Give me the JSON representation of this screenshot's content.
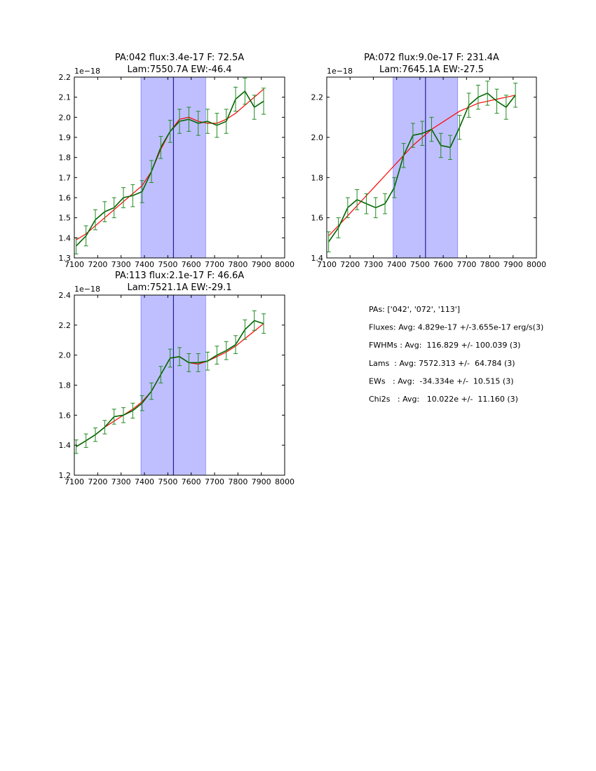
{
  "chart_data": [
    {
      "type": "line",
      "title": [
        "PA:042 flux:3.4e-17 F: 72.5A",
        "Lam:7550.7A EW:-46.4"
      ],
      "offset_text": "1e−18",
      "xlim": [
        7100,
        8000
      ],
      "ylim": [
        1.3,
        2.2
      ],
      "xticks": [
        "7100",
        "7200",
        "7300",
        "7400",
        "7500",
        "7600",
        "7700",
        "7800",
        "7900",
        "8000"
      ],
      "yticks": [
        "1.3",
        "1.4",
        "1.5",
        "1.6",
        "1.7",
        "1.8",
        "1.9",
        "2.0",
        "2.1",
        "2.2"
      ],
      "band": [
        7385,
        7662
      ],
      "vline": 7524,
      "x": [
        7108,
        7150,
        7190,
        7230,
        7270,
        7310,
        7350,
        7390,
        7430,
        7470,
        7510,
        7550,
        7590,
        7630,
        7670,
        7710,
        7750,
        7790,
        7830,
        7870,
        7910
      ],
      "y": [
        1.36,
        1.41,
        1.49,
        1.53,
        1.55,
        1.6,
        1.61,
        1.63,
        1.73,
        1.85,
        1.93,
        1.98,
        1.99,
        1.97,
        1.98,
        1.96,
        1.98,
        2.09,
        2.13,
        2.05,
        2.08
      ],
      "err": [
        0.04,
        0.05,
        0.05,
        0.05,
        0.05,
        0.05,
        0.055,
        0.055,
        0.055,
        0.055,
        0.055,
        0.06,
        0.06,
        0.06,
        0.06,
        0.06,
        0.06,
        0.06,
        0.065,
        0.06,
        0.065
      ],
      "fit": [
        1.39,
        1.42,
        1.46,
        1.5,
        1.54,
        1.58,
        1.62,
        1.66,
        1.73,
        1.84,
        1.93,
        1.99,
        2.0,
        1.98,
        1.97,
        1.97,
        1.99,
        2.02,
        2.06,
        2.1,
        2.14
      ],
      "colors": {
        "data": "#006400",
        "err": "#228b22",
        "fit": "#ff0000",
        "band": "#0000ff",
        "vline": "#000080"
      }
    },
    {
      "type": "line",
      "title": [
        "PA:072 flux:9.0e-17 F: 231.4A",
        "Lam:7645.1A EW:-27.5"
      ],
      "offset_text": "1e−18",
      "xlim": [
        7100,
        8000
      ],
      "ylim": [
        1.4,
        2.3
      ],
      "xticks": [
        "7100",
        "7200",
        "7300",
        "7400",
        "7500",
        "7600",
        "7700",
        "7800",
        "7900",
        "8000"
      ],
      "yticks": [
        "1.4",
        "1.6",
        "1.8",
        "2.0",
        "2.2"
      ],
      "band": [
        7385,
        7662
      ],
      "vline": 7524,
      "x": [
        7108,
        7150,
        7190,
        7230,
        7270,
        7310,
        7350,
        7390,
        7430,
        7470,
        7510,
        7550,
        7590,
        7630,
        7670,
        7710,
        7750,
        7790,
        7830,
        7870,
        7910
      ],
      "y": [
        1.48,
        1.55,
        1.65,
        1.69,
        1.67,
        1.65,
        1.67,
        1.75,
        1.91,
        2.01,
        2.02,
        2.04,
        1.96,
        1.95,
        2.05,
        2.16,
        2.2,
        2.22,
        2.18,
        2.15,
        2.21
      ],
      "err": [
        0.05,
        0.05,
        0.05,
        0.05,
        0.05,
        0.05,
        0.05,
        0.05,
        0.06,
        0.06,
        0.06,
        0.06,
        0.06,
        0.06,
        0.06,
        0.06,
        0.06,
        0.06,
        0.06,
        0.06,
        0.06
      ],
      "fit": [
        1.51,
        1.56,
        1.61,
        1.66,
        1.71,
        1.76,
        1.81,
        1.86,
        1.91,
        1.96,
        2.0,
        2.04,
        2.07,
        2.1,
        2.13,
        2.15,
        2.17,
        2.18,
        2.19,
        2.2,
        2.21
      ],
      "colors": {
        "data": "#006400",
        "err": "#228b22",
        "fit": "#ff0000",
        "band": "#0000ff",
        "vline": "#000080"
      }
    },
    {
      "type": "line",
      "title": [
        "PA:113 flux:2.1e-17 F: 46.6A",
        "Lam:7521.1A EW:-29.1"
      ],
      "offset_text": "1e−18",
      "xlim": [
        7100,
        8000
      ],
      "ylim": [
        1.2,
        2.4
      ],
      "xticks": [
        "7100",
        "7200",
        "7300",
        "7400",
        "7500",
        "7600",
        "7700",
        "7800",
        "7900",
        "8000"
      ],
      "yticks": [
        "1.2",
        "1.4",
        "1.6",
        "1.8",
        "2.0",
        "2.2",
        "2.4"
      ],
      "band": [
        7385,
        7662
      ],
      "vline": 7524,
      "x": [
        7108,
        7150,
        7190,
        7230,
        7270,
        7310,
        7350,
        7390,
        7430,
        7470,
        7510,
        7550,
        7590,
        7630,
        7670,
        7710,
        7750,
        7790,
        7830,
        7870,
        7910
      ],
      "y": [
        1.39,
        1.43,
        1.47,
        1.52,
        1.59,
        1.6,
        1.63,
        1.68,
        1.76,
        1.87,
        1.98,
        1.99,
        1.95,
        1.95,
        1.96,
        2.0,
        2.03,
        2.07,
        2.17,
        2.23,
        2.21
      ],
      "err": [
        0.045,
        0.045,
        0.045,
        0.045,
        0.05,
        0.05,
        0.05,
        0.05,
        0.055,
        0.055,
        0.06,
        0.06,
        0.06,
        0.06,
        0.06,
        0.06,
        0.06,
        0.06,
        0.065,
        0.065,
        0.065
      ],
      "fit": [
        1.39,
        1.43,
        1.47,
        1.52,
        1.56,
        1.6,
        1.64,
        1.69,
        1.76,
        1.87,
        1.98,
        1.99,
        1.95,
        1.94,
        1.96,
        1.99,
        2.02,
        2.06,
        2.11,
        2.16,
        2.21
      ],
      "colors": {
        "data": "#006400",
        "err": "#228b22",
        "fit": "#ff0000",
        "band": "#0000ff",
        "vline": "#000080"
      }
    }
  ],
  "stats": [
    "PAs: ['042', '072', '113']",
    "Fluxes: Avg: 4.829e-17 +/-3.655e-17 erg/s(3)",
    "FWHMs : Avg:  116.829 +/- 100.039 (3)",
    "Lams  : Avg: 7572.313 +/-  64.784 (3)",
    "EWs   : Avg:  -34.334e +/-  10.515 (3)",
    "Chi2s   : Avg:   10.022e +/-  11.160 (3)"
  ]
}
